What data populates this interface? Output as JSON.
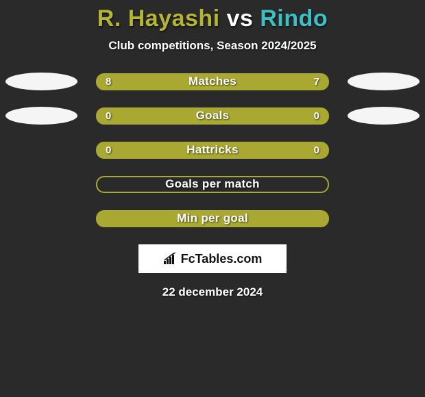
{
  "title": {
    "player1": "R. Hayashi",
    "vs": " vs ",
    "player2": "Rindo",
    "player1_color": "#b4b435",
    "vs_color": "#ffffff",
    "player2_color": "#3dc0c4"
  },
  "subtitle": "Club competitions, Season 2024/2025",
  "background_color": "#2a2a2a",
  "ellipse_left_color": "#f5f5f5",
  "ellipse_right_color": "#f5f5f5",
  "bar_border_color": "#a8a832",
  "bar_bg_nonzero": "#a8a832",
  "bar_bg_zero": "#2a2a2a",
  "rows": [
    {
      "label": "Matches",
      "left": "8",
      "right": "7",
      "show_values": true,
      "show_ellipses": true,
      "bar_fill": "#a8a832"
    },
    {
      "label": "Goals",
      "left": "0",
      "right": "0",
      "show_values": true,
      "show_ellipses": true,
      "bar_fill": "#a8a832"
    },
    {
      "label": "Hattricks",
      "left": "0",
      "right": "0",
      "show_values": true,
      "show_ellipses": false,
      "bar_fill": "#a8a832"
    },
    {
      "label": "Goals per match",
      "left": "",
      "right": "",
      "show_values": false,
      "show_ellipses": false,
      "bar_fill": "transparent"
    },
    {
      "label": "Min per goal",
      "left": "",
      "right": "",
      "show_values": false,
      "show_ellipses": false,
      "bar_fill": "#a8a832"
    }
  ],
  "branding": "FcTables.com",
  "date": "22 december 2024"
}
